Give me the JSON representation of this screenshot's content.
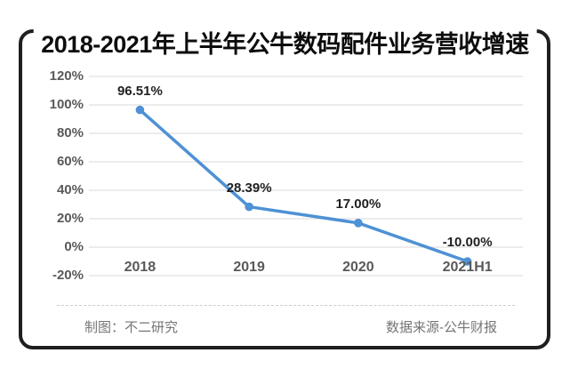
{
  "title": "2018-2021年上半年公牛数码配件业务营收增速",
  "footer": {
    "left": "制图：不二研究",
    "right": "数据来源-公牛财报"
  },
  "colors": {
    "line": "#4e91d5",
    "marker": "#4e91d5",
    "grid": "#d9d9d9",
    "axis_text": "#595959",
    "data_label_text": "#1f1f1f",
    "frame_border": "#1f1f1f",
    "footer_text": "#757575",
    "background": "#ffffff"
  },
  "chart_data": {
    "type": "line",
    "title": "2018-2021年上半年公牛数码配件业务营收增速",
    "categories": [
      "2018",
      "2019",
      "2020",
      "2021H1"
    ],
    "values": [
      96.51,
      28.39,
      17.0,
      -10.0
    ],
    "data_labels": [
      "96.51%",
      "28.39%",
      "17.00%",
      "-10.00%"
    ],
    "series_name": "公牛数码配件业务营收增速",
    "y_ticks": [
      "120%",
      "100%",
      "80%",
      "60%",
      "40%",
      "20%",
      "0%",
      "-20%"
    ],
    "y_tick_values": [
      120,
      100,
      80,
      60,
      40,
      20,
      0,
      -20
    ],
    "ylim": [
      -20,
      120
    ],
    "xlabel": "",
    "ylabel": "",
    "grid": true,
    "legend": false,
    "marker": "circle"
  }
}
